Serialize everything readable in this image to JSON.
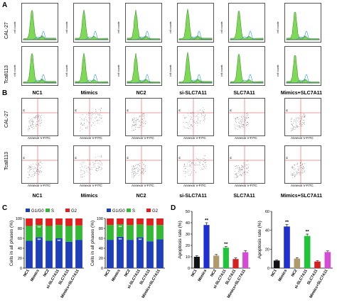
{
  "panels": {
    "A": "A",
    "B": "B",
    "C": "C",
    "D": "D"
  },
  "cell_lines": [
    "CAL-27",
    "Tca8113"
  ],
  "groups": [
    "NC1",
    "Mimics",
    "NC2",
    "si-SLC7A11",
    "SLC7A11",
    "Mimics+SLC7A11"
  ],
  "panel_a": {
    "ylabel": "cell counts"
  },
  "panel_b": {
    "xlabel": "Annexin V-FITC",
    "ylabel": "PI"
  },
  "colors": {
    "g1": "#1f3fb8",
    "s": "#35b835",
    "g2": "#e02020",
    "hist_fill": "#7ed957",
    "hist_line": "#2e8b1e",
    "bar_nc1": "#111111",
    "bar_mimics": "#1f2fd0",
    "bar_nc2": "#b09a6a",
    "bar_si": "#22c43a",
    "bar_slc": "#d82020",
    "bar_combo": "#d64bd6"
  },
  "chart_data": [
    {
      "type": "bar",
      "panel": "C",
      "cell_line": "CAL-27",
      "stacked": true,
      "categories": [
        "NC1",
        "Mimics",
        "NC2",
        "si-SLC7A11",
        "SLC7A11",
        "Mimics+SLC7A11"
      ],
      "series": [
        {
          "name": "G1/G0",
          "values": [
            55,
            62,
            55,
            60,
            53,
            57
          ]
        },
        {
          "name": "S",
          "values": [
            30,
            25,
            30,
            27,
            32,
            29
          ]
        },
        {
          "name": "G2",
          "values": [
            15,
            13,
            15,
            13,
            15,
            14
          ]
        }
      ],
      "ylabel": "Cells in all phases (%)",
      "ylim": [
        0,
        100
      ],
      "yticks": [
        "0",
        "20",
        "40",
        "60",
        "80",
        "100"
      ],
      "annotations": [
        "**",
        "**",
        "**"
      ],
      "legend": "top"
    },
    {
      "type": "bar",
      "panel": "C",
      "cell_line": "Tca8113",
      "stacked": true,
      "categories": [
        "NC1",
        "Mimics",
        "NC2",
        "si-SLC7A11",
        "SLC7A11",
        "Mimics+SLC7A11"
      ],
      "series": [
        {
          "name": "G1/G0",
          "values": [
            57,
            63,
            57,
            62,
            54,
            58
          ]
        },
        {
          "name": "S",
          "values": [
            30,
            25,
            30,
            26,
            32,
            29
          ]
        },
        {
          "name": "G2",
          "values": [
            13,
            12,
            13,
            12,
            14,
            13
          ]
        }
      ],
      "ylabel": "Cells in all phases (%)",
      "ylim": [
        0,
        100
      ],
      "yticks": [
        "0",
        "20",
        "40",
        "60",
        "80",
        "100"
      ],
      "annotations": [
        "**",
        "**",
        "**"
      ],
      "legend": "top"
    },
    {
      "type": "bar",
      "panel": "D",
      "cell_line": "CAL-27",
      "categories": [
        "NC1",
        "Mimics",
        "NC2",
        "si-SLC7A11",
        "SLC7A11",
        "Mimics+SLC7A11"
      ],
      "values": [
        10,
        38,
        11,
        18,
        8,
        14
      ],
      "errors": [
        1,
        2,
        1,
        1,
        1,
        1.5
      ],
      "ylabel": "Apoptosis rate (%)",
      "ylim": [
        0,
        50
      ],
      "yticks": [
        "0",
        "10",
        "20",
        "30",
        "40",
        "50"
      ],
      "annotations": [
        "",
        "**",
        "",
        "**",
        "",
        ""
      ]
    },
    {
      "type": "bar",
      "panel": "D",
      "cell_line": "Tca8113",
      "categories": [
        "NC1",
        "Mimics",
        "NC2",
        "si-SLC7A11",
        "SLC7A11",
        "Mimics+SLC7A11"
      ],
      "values": [
        8,
        44,
        10,
        34,
        7,
        17
      ],
      "errors": [
        0.8,
        2,
        1,
        2,
        0.8,
        1.2
      ],
      "ylabel": "Apoptosis rate (%)",
      "ylim": [
        0,
        60
      ],
      "yticks": [
        "0",
        "20",
        "40",
        "60"
      ],
      "annotations": [
        "",
        "**",
        "",
        "**",
        "",
        ""
      ]
    }
  ]
}
